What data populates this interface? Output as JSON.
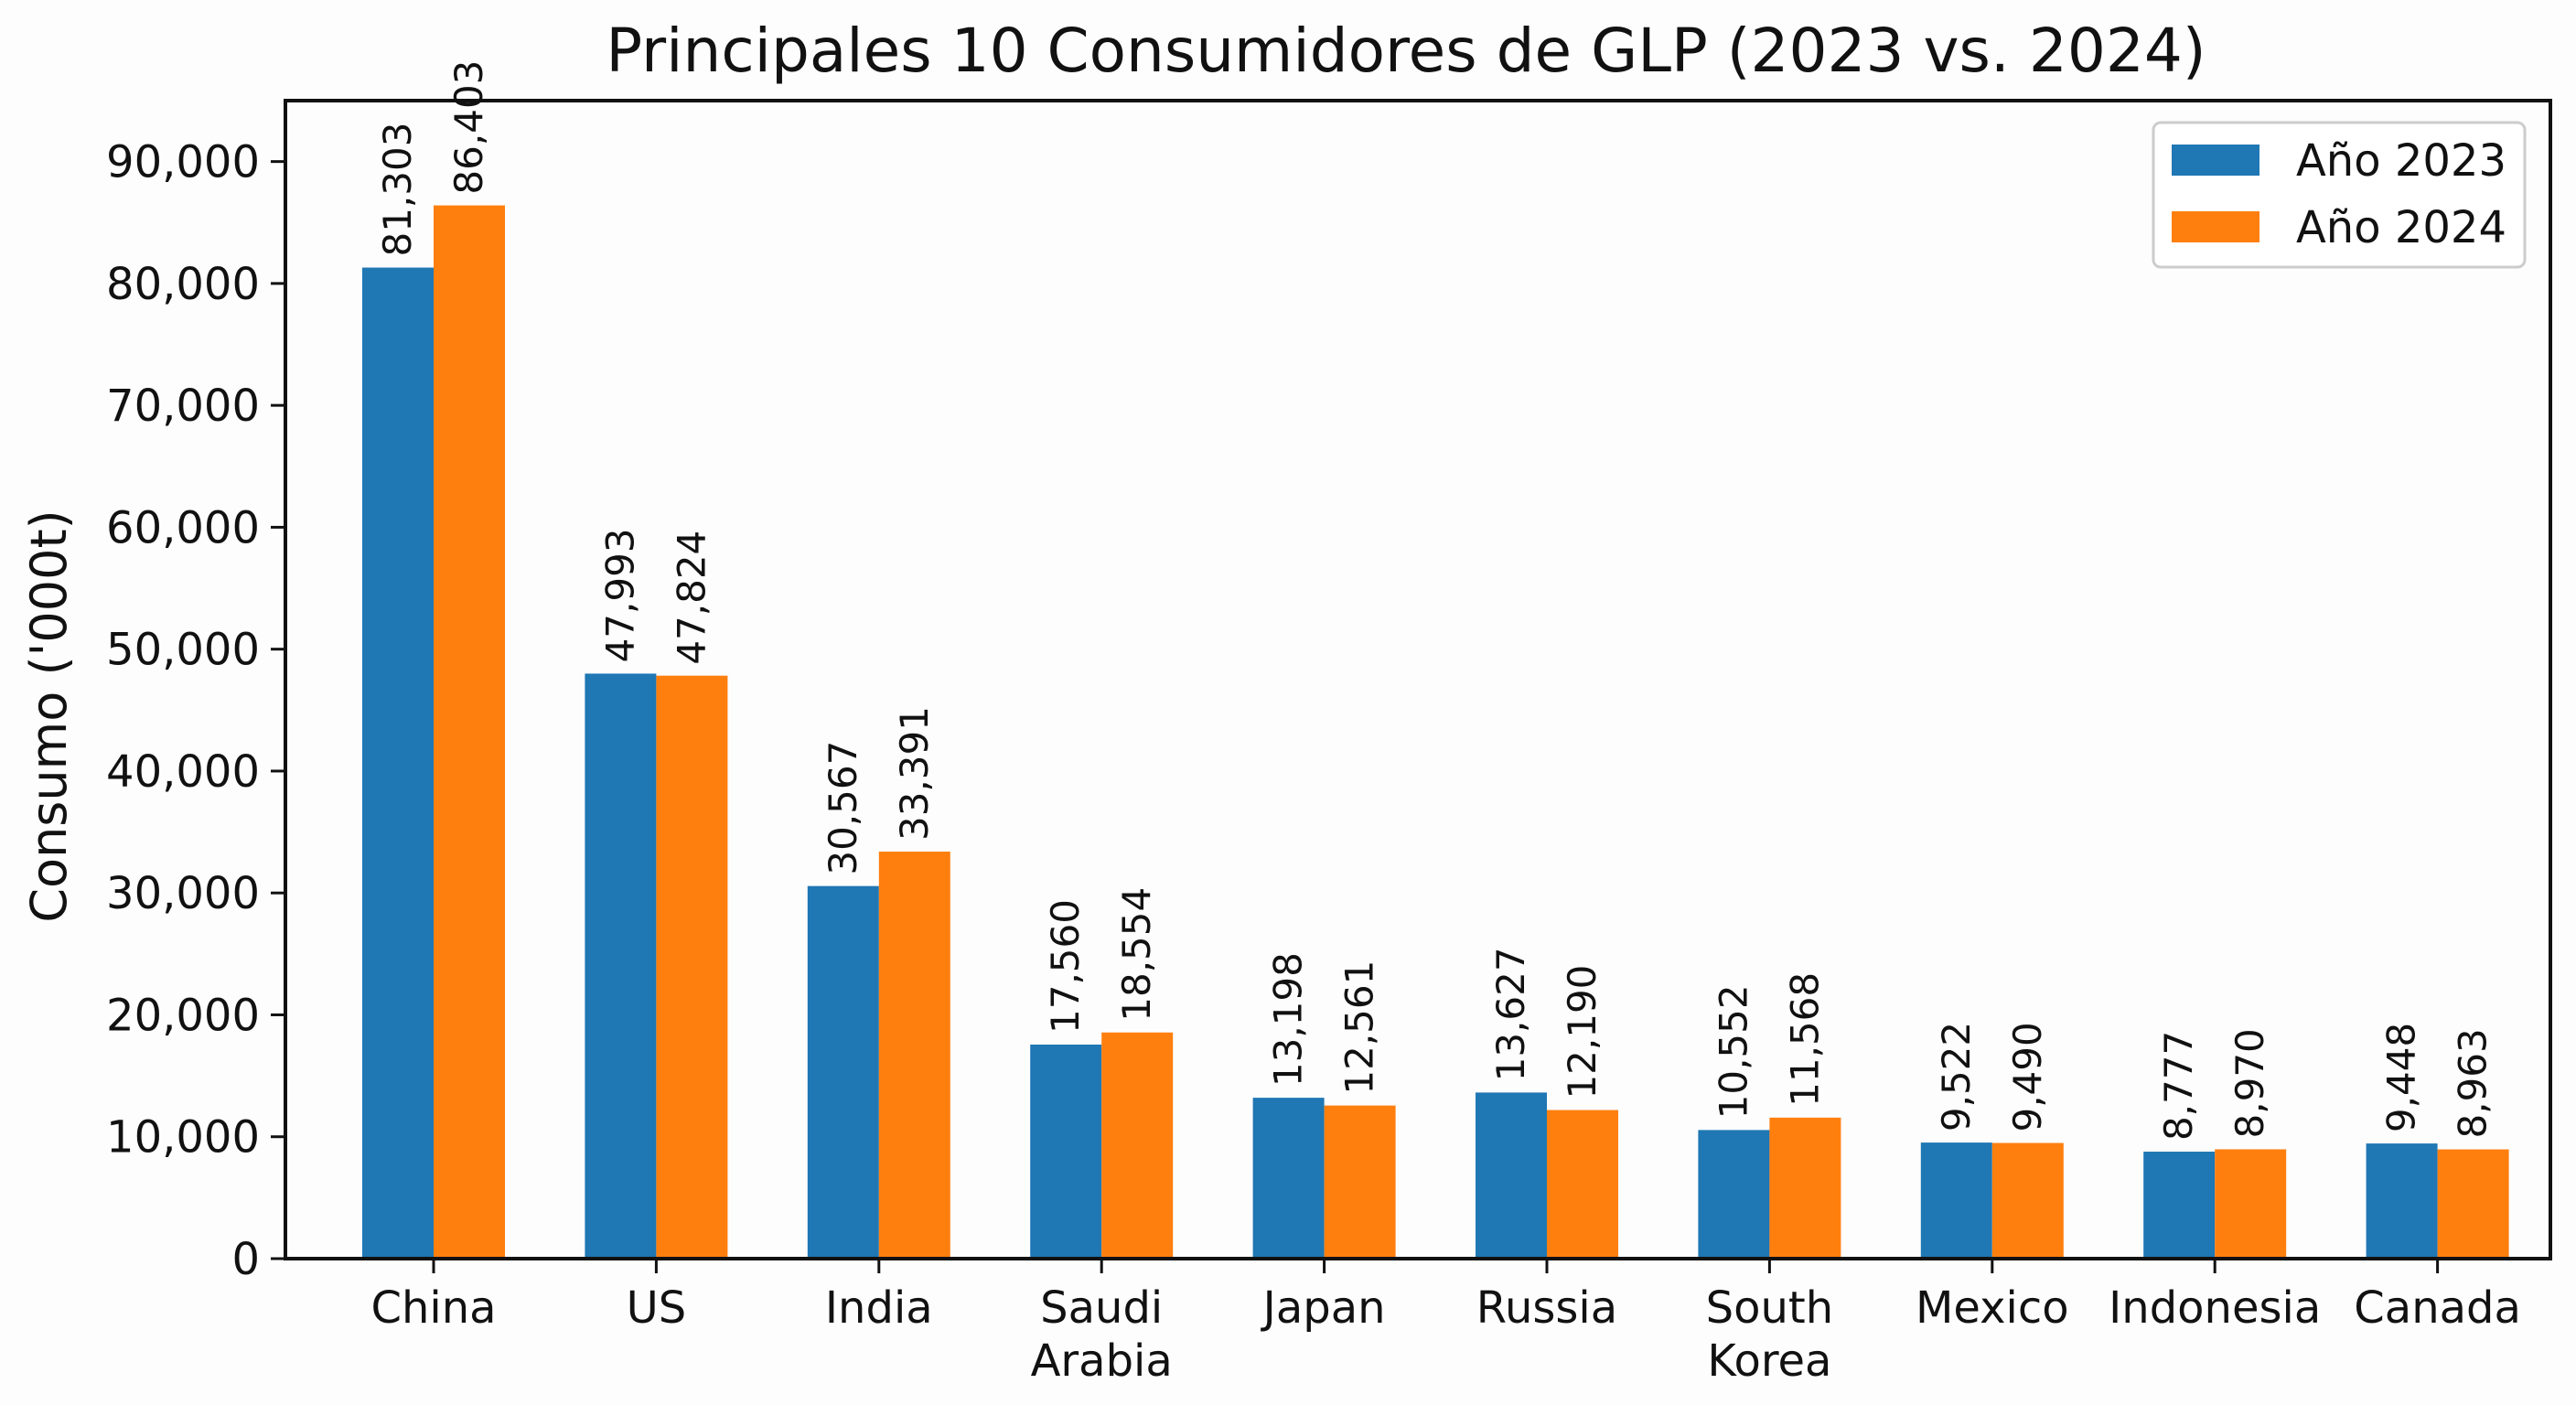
{
  "chart_data": {
    "type": "bar",
    "title": "Principales 10 Consumidores de GLP (2023 vs. 2024)",
    "xlabel": "",
    "ylabel": "Consumo ('000t)",
    "ylim": [
      0,
      95000
    ],
    "yticks": [
      0,
      10000,
      20000,
      30000,
      40000,
      50000,
      60000,
      70000,
      80000,
      90000
    ],
    "ytick_labels": [
      "0",
      "10,000",
      "20,000",
      "30,000",
      "40,000",
      "50,000",
      "60,000",
      "70,000",
      "80,000",
      "90,000"
    ],
    "grid": false,
    "legend_position": "top-right",
    "categories": [
      "China",
      "US",
      "India",
      "Saudi Arabia",
      "Japan",
      "Russia",
      "South Korea",
      "Mexico",
      "Indonesia",
      "Canada"
    ],
    "category_lines": [
      [
        "China"
      ],
      [
        "US"
      ],
      [
        "India"
      ],
      [
        "Saudi",
        "Arabia"
      ],
      [
        "Japan"
      ],
      [
        "Russia"
      ],
      [
        "South",
        "Korea"
      ],
      [
        "Mexico"
      ],
      [
        "Indonesia"
      ],
      [
        "Canada"
      ]
    ],
    "series": [
      {
        "name": "Año 2023",
        "color": "#1f77b4",
        "values": [
          81303,
          47993,
          30567,
          17560,
          13198,
          13627,
          10552,
          9522,
          8777,
          9448
        ],
        "labels": [
          "81,303",
          "47,993",
          "30,567",
          "17,560",
          "13,198",
          "13,627",
          "10,552",
          "9,522",
          "8,777",
          "9,448"
        ]
      },
      {
        "name": "Año 2024",
        "color": "#ff7f0e",
        "values": [
          86403,
          47824,
          33391,
          18554,
          12561,
          12190,
          11568,
          9490,
          8970,
          8963
        ],
        "labels": [
          "86,403",
          "47,824",
          "33,391",
          "18,554",
          "12,561",
          "12,190",
          "11,568",
          "9,490",
          "8,970",
          "8,963"
        ]
      }
    ]
  }
}
